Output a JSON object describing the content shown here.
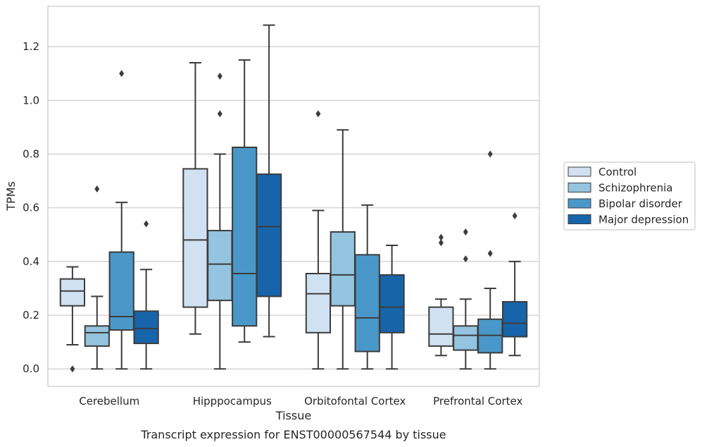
{
  "chart_data": {
    "type": "boxplot",
    "caption": "Transcript expression for ENST00000567544 by tissue",
    "xlabel": "Tissue",
    "ylabel": "TPMs",
    "ylim": [
      -0.065,
      1.35
    ],
    "yticks": [
      "0.0",
      "0.2",
      "0.4",
      "0.6",
      "0.8",
      "1.0",
      "1.2"
    ],
    "ytick_values": [
      0.0,
      0.2,
      0.4,
      0.6,
      0.8,
      1.0,
      1.2
    ],
    "grid": true,
    "legend_position": "right",
    "categories": [
      "Cerebellum",
      "Hipppocampus",
      "Orbitofontal Cortex",
      "Prefrontal Cortex"
    ],
    "series": [
      {
        "name": "Control",
        "color": "#d0e1f2",
        "boxes": [
          {
            "whislo": 0.09,
            "q1": 0.235,
            "med": 0.29,
            "q3": 0.335,
            "whishi": 0.38,
            "fliers": [
              0.0
            ]
          },
          {
            "whislo": 0.13,
            "q1": 0.23,
            "med": 0.48,
            "q3": 0.745,
            "whishi": 1.14,
            "fliers": []
          },
          {
            "whislo": 0.0,
            "q1": 0.135,
            "med": 0.28,
            "q3": 0.355,
            "whishi": 0.59,
            "fliers": [
              0.95
            ]
          },
          {
            "whislo": 0.05,
            "q1": 0.085,
            "med": 0.13,
            "q3": 0.23,
            "whishi": 0.26,
            "fliers": [
              0.47,
              0.49
            ]
          }
        ]
      },
      {
        "name": "Schizophrenia",
        "color": "#94c4df",
        "boxes": [
          {
            "whislo": 0.0,
            "q1": 0.085,
            "med": 0.135,
            "q3": 0.16,
            "whishi": 0.27,
            "fliers": [
              0.67
            ]
          },
          {
            "whislo": 0.0,
            "q1": 0.255,
            "med": 0.39,
            "q3": 0.515,
            "whishi": 0.8,
            "fliers": [
              0.95,
              1.09
            ]
          },
          {
            "whislo": 0.0,
            "q1": 0.235,
            "med": 0.35,
            "q3": 0.51,
            "whishi": 0.89,
            "fliers": []
          },
          {
            "whislo": 0.0,
            "q1": 0.07,
            "med": 0.125,
            "q3": 0.16,
            "whishi": 0.26,
            "fliers": [
              0.41,
              0.51
            ]
          }
        ]
      },
      {
        "name": "Bipolar disorder",
        "color": "#4a98c9",
        "boxes": [
          {
            "whislo": 0.0,
            "q1": 0.145,
            "med": 0.195,
            "q3": 0.435,
            "whishi": 0.62,
            "fliers": [
              1.1
            ]
          },
          {
            "whislo": 0.1,
            "q1": 0.16,
            "med": 0.355,
            "q3": 0.825,
            "whishi": 1.15,
            "fliers": []
          },
          {
            "whislo": 0.0,
            "q1": 0.065,
            "med": 0.19,
            "q3": 0.425,
            "whishi": 0.61,
            "fliers": []
          },
          {
            "whislo": 0.0,
            "q1": 0.06,
            "med": 0.125,
            "q3": 0.185,
            "whishi": 0.3,
            "fliers": [
              0.43,
              0.8
            ]
          }
        ]
      },
      {
        "name": "Major depression",
        "color": "#1764ab",
        "boxes": [
          {
            "whislo": 0.0,
            "q1": 0.095,
            "med": 0.15,
            "q3": 0.215,
            "whishi": 0.37,
            "fliers": [
              0.54
            ]
          },
          {
            "whislo": 0.12,
            "q1": 0.27,
            "med": 0.53,
            "q3": 0.725,
            "whishi": 1.28,
            "fliers": []
          },
          {
            "whislo": 0.0,
            "q1": 0.135,
            "med": 0.23,
            "q3": 0.35,
            "whishi": 0.46,
            "fliers": []
          },
          {
            "whislo": 0.05,
            "q1": 0.12,
            "med": 0.17,
            "q3": 0.25,
            "whishi": 0.4,
            "fliers": [
              0.57
            ]
          }
        ]
      }
    ]
  }
}
